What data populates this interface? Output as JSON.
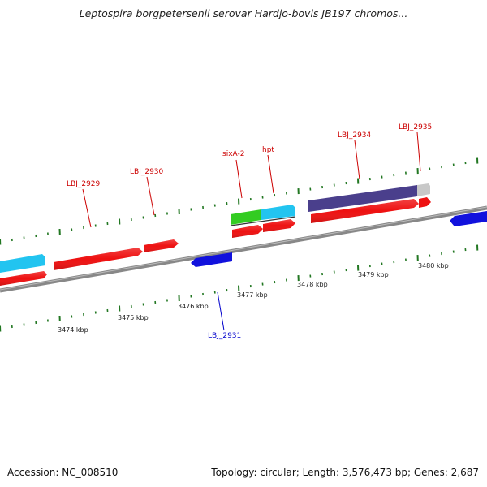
{
  "header": {
    "title": "Leptospira borgpetersenii serovar Hardjo-bovis JB197 chromos..."
  },
  "footer": {
    "accession": "Accession: NC_008510",
    "stats": "Topology: circular; Length: 3,576,473 bp; Genes: 2,687"
  },
  "colors": {
    "forward_gene": "#ee1111",
    "reverse_gene": "#1111dd",
    "cyan_feature": "#22c4f0",
    "green_feature": "#33cc22",
    "purple_feature": "#4a3f8c",
    "gray_feature": "#c8c8c8",
    "label_forward": "#cc0000",
    "label_reverse": "#0000cc",
    "tick_color": "#227722",
    "backbone": "#888888"
  },
  "axis_labels": [
    "3474 kbp",
    "3475 kbp",
    "3476 kbp",
    "3477 kbp",
    "3478 kbp",
    "3479 kbp",
    "3480 kbp"
  ],
  "gene_labels": [
    {
      "text": "LBJ_2929",
      "strand": "forward"
    },
    {
      "text": "LBJ_2930",
      "strand": "forward"
    },
    {
      "text": "sixA-2",
      "strand": "forward"
    },
    {
      "text": "hpt",
      "strand": "forward"
    },
    {
      "text": "LBJ_2934",
      "strand": "forward"
    },
    {
      "text": "LBJ_2935",
      "strand": "forward"
    },
    {
      "text": "LBJ_2931",
      "strand": "reverse"
    }
  ]
}
